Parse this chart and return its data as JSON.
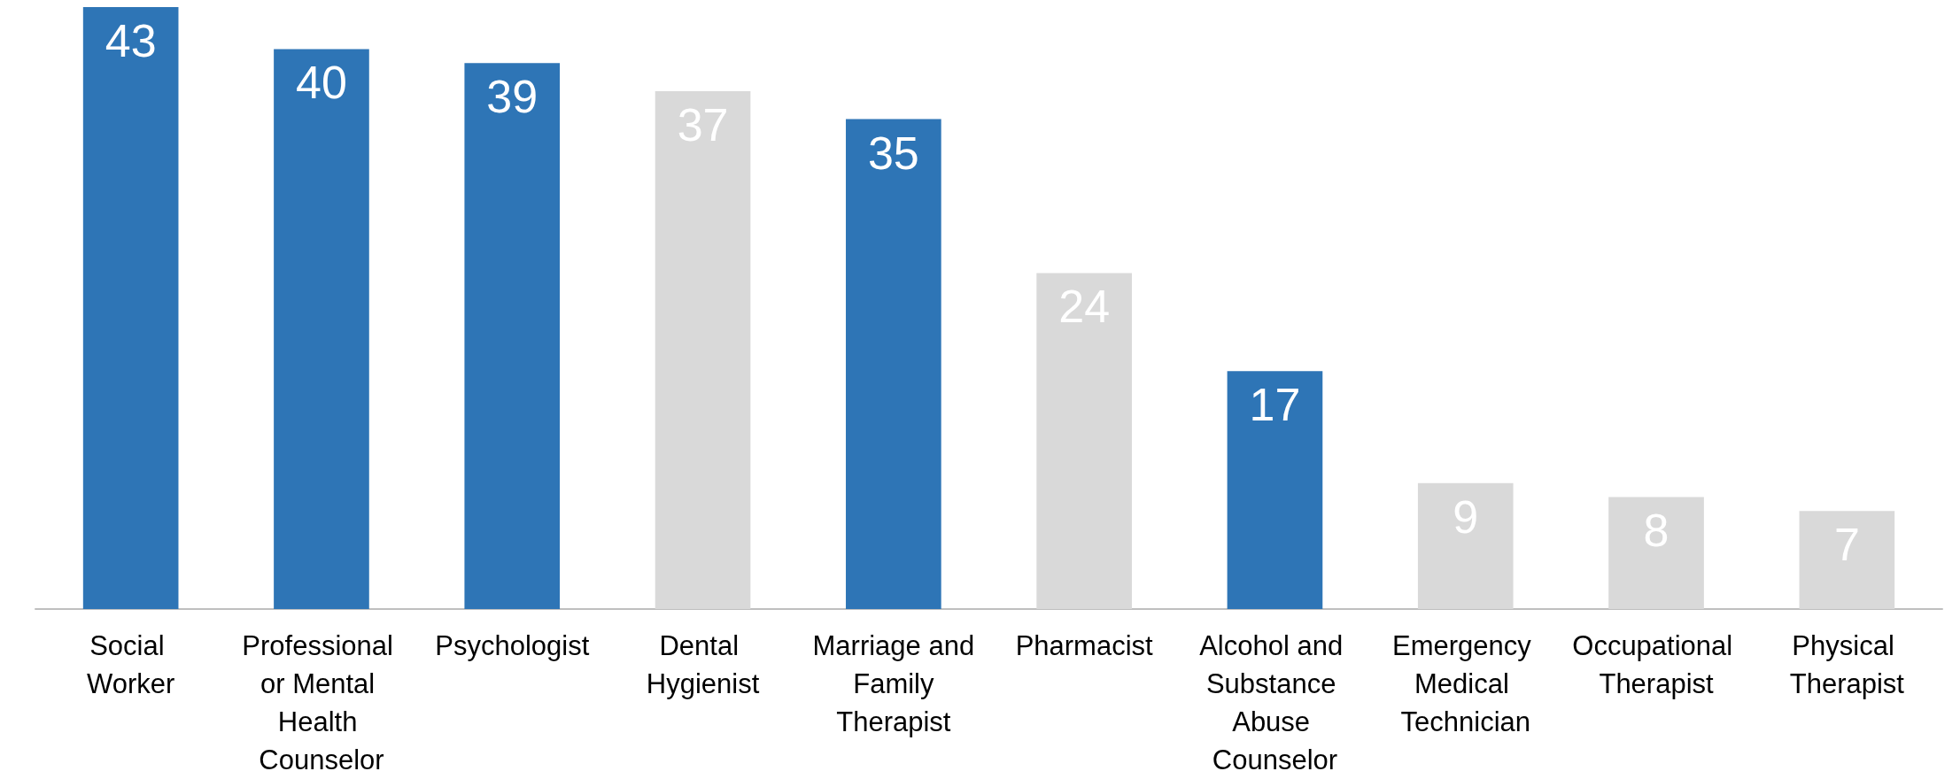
{
  "chart_data": {
    "type": "bar",
    "categories": [
      "Social Worker",
      "Professional or Mental Health Counselor",
      "Psychologist",
      "Dental Hygienist",
      "Marriage and Family Therapist",
      "Pharmacist",
      "Alcohol and Substance Abuse Counselor",
      "Emergency Medical Technician",
      "Occupational Therapist",
      "Physical Therapist"
    ],
    "values": [
      43,
      40,
      39,
      37,
      35,
      24,
      17,
      9,
      8,
      7
    ],
    "colors": [
      "#2e75b6",
      "#2e75b6",
      "#2e75b6",
      "#d9d9d9",
      "#2e75b6",
      "#d9d9d9",
      "#2e75b6",
      "#d9d9d9",
      "#d9d9d9",
      "#d9d9d9"
    ],
    "data_labels": true
  }
}
